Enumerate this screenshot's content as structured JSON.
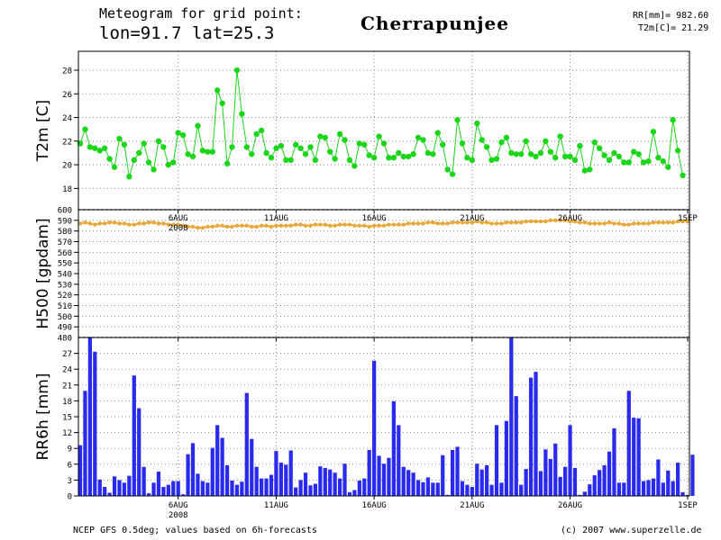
{
  "header": {
    "title_line1": "Meteogram for grid point:",
    "title_line2": "lon=91.7 lat=25.3",
    "location": "Cherrapunjee",
    "rr_total": "RR[mm]= 982.60",
    "t2m_mean": "T2m[C]= 21.29"
  },
  "footer": {
    "source": "NCEP GFS 0.5deg; values based on 6h-forecasts",
    "credit": "(c) 2007 www.superzelle.de"
  },
  "colors": {
    "temperature": "#19d619",
    "geopotential": "#e8a838",
    "precipitation": "#2a2aef",
    "grid": "#888888",
    "frame": "#000000"
  },
  "chart_data": [
    {
      "type": "line",
      "ylabel": "T2m [C]",
      "ylim": [
        16.2,
        29.6
      ],
      "yticks": [
        18,
        20,
        22,
        24,
        26,
        28
      ],
      "x_start": "2008-08-01 06:00",
      "x_step_hours": 6,
      "xticks": [
        {
          "label": "6AUG",
          "sub": "2008",
          "index": 20
        },
        {
          "label": "11AUG",
          "sub": "",
          "index": 40
        },
        {
          "label": "16AUG",
          "sub": "",
          "index": 60
        },
        {
          "label": "21AUG",
          "sub": "",
          "index": 80
        },
        {
          "label": "26AUG",
          "sub": "",
          "index": 100
        },
        {
          "label": "1SEP",
          "sub": "",
          "index": 124
        }
      ],
      "series": [
        {
          "values": [
            21.8,
            23.0,
            21.5,
            21.4,
            21.2,
            21.4,
            20.5,
            19.8,
            22.2,
            21.7,
            19.0,
            20.4,
            21.0,
            21.8,
            20.2,
            19.6,
            22.0,
            21.5,
            20.0,
            20.2,
            22.7,
            22.5,
            20.9,
            20.7,
            23.3,
            21.2,
            21.1,
            21.1,
            26.3,
            25.2,
            20.1,
            21.5,
            28.0,
            24.3,
            21.5,
            20.9,
            22.6,
            22.9,
            21.0,
            20.6,
            21.4,
            21.6,
            20.4,
            20.4,
            21.7,
            21.4,
            20.9,
            21.5,
            20.4,
            22.4,
            22.3,
            21.1,
            20.5,
            22.6,
            22.1,
            20.4,
            19.9,
            21.8,
            21.7,
            20.8,
            20.6,
            22.4,
            21.8,
            20.6,
            20.6,
            21.0,
            20.7,
            20.7,
            20.9,
            22.3,
            22.1,
            21.0,
            20.9,
            22.7,
            21.7,
            19.6,
            19.2,
            23.8,
            21.8,
            20.6,
            20.4,
            23.5,
            22.1,
            21.5,
            20.4,
            20.5,
            21.9,
            22.3,
            21.0,
            20.9,
            20.9,
            22.0,
            20.9,
            20.7,
            21.0,
            22.0,
            21.1,
            20.6,
            22.4,
            20.7,
            20.7,
            20.4,
            21.6,
            19.5,
            19.6,
            21.9,
            21.4,
            20.8,
            20.4,
            21.0,
            20.7,
            20.2,
            20.2,
            21.1,
            20.9,
            20.2,
            20.3,
            22.8,
            20.6,
            20.3,
            19.8,
            23.8,
            21.2,
            19.1
          ]
        }
      ]
    },
    {
      "type": "line",
      "ylabel": "H500 [gpdam]",
      "ylim": [
        480,
        600
      ],
      "yticks": [
        490,
        500,
        510,
        520,
        530,
        540,
        550,
        560,
        570,
        580,
        590
      ],
      "top_label": "600",
      "bottom_label": "480",
      "series": [
        {
          "values": [
            587,
            588,
            587,
            586,
            587,
            587,
            588,
            588,
            587,
            587,
            586,
            586,
            587,
            587,
            588,
            588,
            587,
            587,
            586,
            586,
            586,
            585,
            584,
            584,
            583,
            583,
            584,
            584,
            585,
            585,
            584,
            584,
            585,
            585,
            585,
            584,
            584,
            585,
            585,
            584,
            585,
            585,
            585,
            585,
            586,
            586,
            585,
            585,
            586,
            586,
            586,
            585,
            585,
            586,
            586,
            586,
            585,
            585,
            585,
            584,
            585,
            585,
            585,
            586,
            586,
            586,
            586,
            587,
            587,
            587,
            587,
            588,
            588,
            587,
            587,
            587,
            588,
            588,
            588,
            588,
            588,
            589,
            588,
            588,
            587,
            587,
            587,
            588,
            588,
            588,
            588,
            589,
            589,
            589,
            589,
            589,
            590,
            590,
            590,
            590,
            589,
            589,
            588,
            588,
            587,
            587,
            587,
            587,
            588,
            587,
            587,
            586,
            586,
            587,
            587,
            587,
            587,
            588,
            588,
            588,
            588,
            588,
            589,
            589,
            589
          ]
        }
      ]
    },
    {
      "type": "bar",
      "ylabel": "RR6h [mm]",
      "ylim": [
        0,
        30
      ],
      "yticks": [
        0,
        3,
        6,
        9,
        12,
        15,
        18,
        21,
        24,
        27
      ],
      "top_label": "480",
      "values": [
        9.6,
        19.9,
        30.0,
        27.3,
        3.1,
        1.7,
        0.6,
        3.7,
        3.0,
        2.5,
        3.8,
        22.8,
        16.6,
        5.5,
        0.5,
        2.5,
        4.6,
        1.7,
        2.1,
        2.8,
        2.8,
        0.3,
        7.9,
        10.0,
        4.2,
        2.8,
        2.5,
        9.1,
        13.4,
        11.0,
        5.8,
        2.9,
        2.1,
        2.7,
        19.5,
        10.8,
        5.5,
        3.3,
        3.3,
        4.0,
        8.5,
        6.3,
        5.9,
        8.6,
        1.6,
        3.0,
        4.4,
        2.0,
        2.3,
        5.6,
        5.3,
        5.0,
        4.4,
        3.3,
        6.1,
        0.7,
        1.1,
        2.9,
        3.3,
        8.7,
        25.6,
        7.6,
        6.1,
        7.2,
        17.9,
        13.4,
        5.5,
        4.9,
        4.4,
        3.0,
        2.6,
        3.5,
        2.5,
        2.5,
        7.7,
        0.2,
        8.7,
        9.3,
        2.8,
        2.1,
        1.7,
        6.1,
        5.0,
        5.8,
        2.1,
        13.4,
        2.5,
        14.2,
        30.0,
        18.9,
        2.1,
        5.1,
        22.4,
        23.5,
        4.7,
        8.8,
        7.0,
        9.9,
        3.6,
        5.5,
        13.4,
        5.3,
        0.2,
        0.8,
        2.2,
        3.9,
        4.9,
        5.8,
        8.4,
        12.8,
        2.5,
        2.5,
        19.9,
        14.8,
        14.7,
        2.8,
        3.0,
        3.3,
        6.9,
        2.5,
        4.8,
        2.8,
        6.3,
        0.7,
        0.2,
        7.8
      ]
    }
  ]
}
